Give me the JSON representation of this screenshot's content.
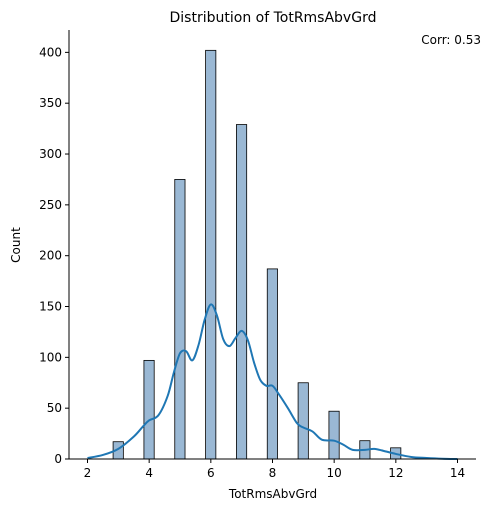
{
  "chart_data": {
    "type": "bar",
    "title": "Distribution of TotRmsAbvGrd",
    "xlabel": "TotRmsAbvGrd",
    "ylabel": "Count",
    "annotation": "Corr: 0.53",
    "xlim": [
      1.4,
      14.6
    ],
    "ylim": [
      0,
      422
    ],
    "x_ticks": [
      2,
      4,
      6,
      8,
      10,
      12,
      14
    ],
    "y_ticks": [
      0,
      50,
      100,
      150,
      200,
      250,
      300,
      350,
      400
    ],
    "bin_width": 0.333,
    "bars": [
      {
        "x": 2.83,
        "value": 17
      },
      {
        "x": 3.83,
        "value": 97
      },
      {
        "x": 4.83,
        "value": 275
      },
      {
        "x": 5.83,
        "value": 402
      },
      {
        "x": 6.83,
        "value": 329
      },
      {
        "x": 7.83,
        "value": 187
      },
      {
        "x": 8.83,
        "value": 75
      },
      {
        "x": 9.83,
        "value": 47
      },
      {
        "x": 10.83,
        "value": 18
      },
      {
        "x": 11.83,
        "value": 11
      }
    ],
    "kde": {
      "x": [
        2.0,
        2.5,
        3.0,
        3.5,
        3.8,
        4.0,
        4.3,
        4.6,
        4.8,
        5.0,
        5.2,
        5.4,
        5.6,
        5.8,
        6.0,
        6.2,
        6.4,
        6.6,
        6.8,
        7.0,
        7.2,
        7.4,
        7.6,
        7.8,
        8.0,
        8.2,
        8.5,
        8.8,
        9.0,
        9.3,
        9.6,
        10.0,
        10.3,
        10.6,
        11.0,
        11.3,
        11.6,
        12.0,
        12.5,
        13.0,
        13.5,
        14.0
      ],
      "y": [
        1,
        4,
        10,
        22,
        32,
        38,
        43,
        62,
        85,
        104,
        106,
        97,
        112,
        137,
        152,
        141,
        118,
        111,
        119,
        126,
        117,
        95,
        78,
        72,
        72,
        64,
        50,
        35,
        31,
        27,
        19,
        18,
        14,
        9,
        9,
        10,
        8,
        5,
        2,
        1,
        0.3,
        0
      ]
    },
    "colors": {
      "bar_fill": "#9ab8d4",
      "bar_edge": "#000000",
      "kde_line": "#1f77b4"
    }
  }
}
